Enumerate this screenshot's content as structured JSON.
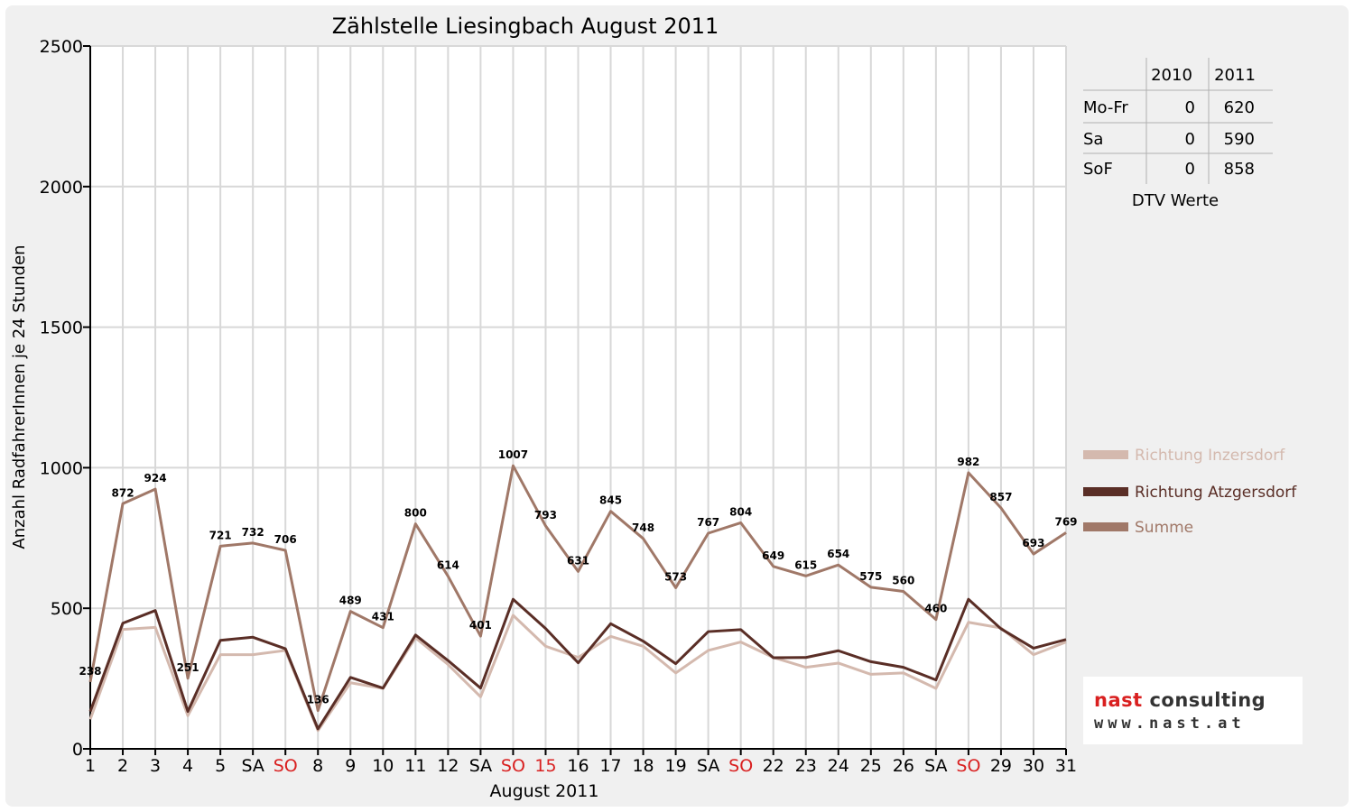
{
  "chart_data": {
    "type": "line",
    "title": "Zählstelle Liesingbach August 2011",
    "xlabel": "August 2011",
    "ylabel": "Anzahl RadfahrerInnen je 24 Stunden",
    "ylim": [
      0,
      2500
    ],
    "yticks": [
      "0",
      "500",
      "1000",
      "1500",
      "2000",
      "2500"
    ],
    "grid": true,
    "legend_position": "right",
    "x": [
      1,
      2,
      3,
      4,
      5,
      6,
      7,
      8,
      9,
      10,
      11,
      12,
      13,
      14,
      15,
      16,
      17,
      18,
      19,
      20,
      21,
      22,
      23,
      24,
      25,
      26,
      27,
      28,
      29,
      30,
      31
    ],
    "xtick_labels": [
      "1",
      "2",
      "3",
      "4",
      "5",
      "SA",
      "SO",
      "8",
      "9",
      "10",
      "11",
      "12",
      "SA",
      "SO",
      "15",
      "16",
      "17",
      "18",
      "19",
      "SA",
      "SO",
      "22",
      "23",
      "24",
      "25",
      "26",
      "SA",
      "SO",
      "29",
      "30",
      "31"
    ],
    "xtick_red": [
      false,
      false,
      false,
      false,
      false,
      false,
      true,
      false,
      false,
      false,
      false,
      false,
      false,
      true,
      true,
      false,
      false,
      false,
      false,
      false,
      true,
      false,
      false,
      false,
      false,
      false,
      false,
      true,
      false,
      false,
      false
    ],
    "series": [
      {
        "name": "Richtung Inzersdorf",
        "color": "#d4b9ae",
        "values": [
          105,
          425,
          432,
          118,
          335,
          335,
          350,
          65,
          235,
          215,
          395,
          300,
          185,
          475,
          365,
          325,
          400,
          365,
          270,
          350,
          380,
          325,
          290,
          305,
          265,
          270,
          215,
          450,
          430,
          335,
          380
        ]
      },
      {
        "name": "Richtung Atzgersdorf",
        "color": "#5a2e26",
        "values": [
          133,
          447,
          492,
          133,
          386,
          397,
          356,
          71,
          254,
          216,
          405,
          314,
          216,
          532,
          428,
          306,
          445,
          383,
          303,
          417,
          424,
          324,
          325,
          349,
          310,
          290,
          245,
          532,
          427,
          358,
          389
        ]
      },
      {
        "name": "Summe",
        "color": "#a07868",
        "values": [
          238,
          872,
          924,
          251,
          721,
          732,
          706,
          136,
          489,
          431,
          800,
          614,
          401,
          1007,
          793,
          631,
          845,
          748,
          573,
          767,
          804,
          649,
          615,
          654,
          575,
          560,
          460,
          982,
          857,
          693,
          769
        ]
      }
    ],
    "data_labels": [
      238,
      872,
      924,
      251,
      721,
      732,
      706,
      136,
      489,
      431,
      800,
      614,
      401,
      1007,
      793,
      631,
      845,
      748,
      573,
      767,
      804,
      649,
      615,
      654,
      575,
      560,
      460,
      982,
      857,
      693,
      769
    ]
  },
  "dtv_table": {
    "col_headers": [
      "2010",
      "2011"
    ],
    "rows": [
      {
        "label": "Mo-Fr",
        "v2010": "0",
        "v2011": "620"
      },
      {
        "label": "Sa",
        "v2010": "0",
        "v2011": "590"
      },
      {
        "label": "SoF",
        "v2010": "0",
        "v2011": "858"
      }
    ],
    "caption": "DTV Werte"
  },
  "logo": {
    "name_accent": "nast",
    "name_rest": " consulting",
    "url": "www.nast.at"
  },
  "colors": {
    "accent_red": "#d92020",
    "grid": "#d8d8d8"
  }
}
